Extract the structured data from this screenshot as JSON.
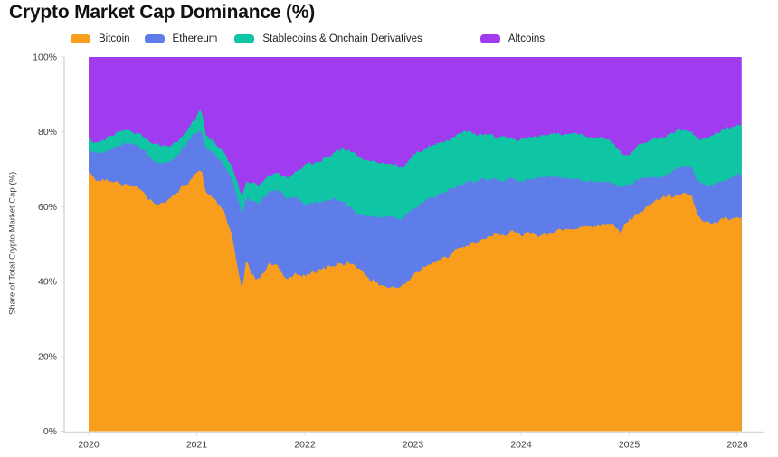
{
  "chart_data": {
    "type": "area",
    "stacked": true,
    "title": "Crypto Market Cap Dominance (%)",
    "ylabel": "Share of Total Crypto Market Cap (%)",
    "xlabel": "",
    "ylim": [
      0,
      100
    ],
    "xlim": [
      2020,
      2026.05
    ],
    "grid": false,
    "legend_position": "top",
    "x_tick_labels": [
      "2020",
      "2021",
      "2022",
      "2023",
      "2024",
      "2025",
      "2026"
    ],
    "x_tick_values": [
      2020,
      2021,
      2022,
      2023,
      2024,
      2025,
      2026
    ],
    "y_tick_labels": [
      "0%",
      "20%",
      "40%",
      "60%",
      "80%",
      "100%"
    ],
    "y_tick_values": [
      0,
      20,
      40,
      60,
      80,
      100
    ],
    "x": [
      2020.0,
      2020.08,
      2020.17,
      2020.25,
      2020.33,
      2020.42,
      2020.5,
      2020.58,
      2020.67,
      2020.75,
      2020.83,
      2020.92,
      2021.0,
      2021.04,
      2021.08,
      2021.17,
      2021.25,
      2021.33,
      2021.38,
      2021.42,
      2021.46,
      2021.5,
      2021.58,
      2021.67,
      2021.75,
      2021.83,
      2021.92,
      2022.0,
      2022.08,
      2022.17,
      2022.25,
      2022.33,
      2022.42,
      2022.5,
      2022.58,
      2022.67,
      2022.75,
      2022.83,
      2022.92,
      2023.0,
      2023.08,
      2023.17,
      2023.25,
      2023.33,
      2023.42,
      2023.5,
      2023.58,
      2023.67,
      2023.75,
      2023.83,
      2023.92,
      2024.0,
      2024.08,
      2024.17,
      2024.25,
      2024.33,
      2024.42,
      2024.5,
      2024.58,
      2024.67,
      2024.75,
      2024.83,
      2024.92,
      2025.0,
      2025.08,
      2025.17,
      2025.25,
      2025.33,
      2025.42,
      2025.5,
      2025.58,
      2025.63,
      2025.67,
      2025.75,
      2025.83,
      2025.92,
      2026.0,
      2026.04
    ],
    "series": [
      {
        "name": "Bitcoin",
        "color": "#F89E1C",
        "values": [
          69,
          66.5,
          67.5,
          66.5,
          66,
          65.5,
          64,
          61.5,
          60.5,
          62,
          64.5,
          66.5,
          69.5,
          70.5,
          64,
          62,
          58.5,
          52,
          43,
          37.8,
          47,
          42,
          40.5,
          45,
          44.5,
          40.5,
          42,
          41.5,
          42.5,
          43.5,
          44,
          44.5,
          45.5,
          43.5,
          41,
          39.5,
          38.5,
          38.5,
          39,
          42,
          43.5,
          45,
          46,
          47,
          48.5,
          49.5,
          50.5,
          51.5,
          52.5,
          52,
          53.5,
          52.5,
          53,
          52.5,
          52.5,
          53.5,
          54,
          54,
          54.5,
          54.5,
          55,
          55.5,
          53.5,
          56.5,
          58,
          60,
          61.5,
          62.5,
          63,
          63.5,
          62.5,
          57.5,
          56.5,
          55.5,
          56.5,
          57,
          57,
          57
        ]
      },
      {
        "name": "Ethereum",
        "color": "#5F7DE8",
        "values": [
          6.5,
          7.5,
          7.5,
          9.5,
          11,
          11,
          11,
          11.5,
          11,
          10,
          9.5,
          11,
          10.5,
          10,
          12,
          12,
          13,
          15,
          19,
          19.7,
          16,
          19.5,
          20.5,
          19,
          20,
          22,
          20.5,
          19,
          18.5,
          18,
          18,
          17,
          14.5,
          14.5,
          16.5,
          17.5,
          19,
          18.5,
          18,
          17.5,
          17.5,
          17.5,
          17.5,
          17.5,
          17,
          17,
          16.5,
          16,
          15,
          15,
          14,
          14,
          14.5,
          15.5,
          15.5,
          14.5,
          13.5,
          13.5,
          12.5,
          12,
          12,
          11,
          11.5,
          9.5,
          9,
          8,
          6,
          6,
          7,
          7.5,
          8,
          9,
          9.5,
          10,
          10,
          10.5,
          11.5,
          11.5
        ]
      },
      {
        "name": "Stablecoins & Onchain Derivatives",
        "color": "#10C5A4",
        "values": [
          2.5,
          3,
          3.5,
          3.5,
          3.5,
          3.5,
          4,
          4,
          4.5,
          4.5,
          4,
          3.5,
          4,
          6,
          3.5,
          3,
          3,
          3.5,
          4,
          5,
          4.5,
          4.5,
          5,
          4.5,
          4.5,
          5,
          7,
          10.5,
          11,
          11,
          12,
          14,
          15,
          15.5,
          15,
          15,
          14,
          14,
          13.5,
          14.5,
          14,
          14,
          13.5,
          13.5,
          14,
          13.5,
          12.5,
          12,
          11.5,
          11.5,
          10.5,
          11,
          11,
          11,
          11,
          11.5,
          12,
          12,
          12,
          12,
          11.5,
          11,
          9.5,
          8,
          9.5,
          9.5,
          10.5,
          10,
          10,
          9.5,
          9.5,
          12,
          12,
          13.5,
          13.5,
          13.5,
          13,
          13.5
        ]
      },
      {
        "name": "Altcoins",
        "color": "#A13BF0",
        "values": [
          22,
          23,
          21.5,
          20.5,
          19.5,
          20,
          21,
          23,
          24,
          23.5,
          22,
          19,
          16,
          13.5,
          20.5,
          23,
          25.5,
          29.5,
          34,
          37.5,
          32.5,
          34,
          34,
          31.5,
          31,
          32.5,
          30.5,
          29,
          28,
          27.5,
          26,
          24.5,
          25,
          26.5,
          27.5,
          28,
          28.5,
          29,
          29.5,
          26,
          25,
          23.5,
          23,
          22,
          20.5,
          20,
          20.5,
          20.5,
          21,
          21.5,
          22,
          22.5,
          21.5,
          21,
          21,
          20.5,
          20.5,
          20.5,
          21,
          21.5,
          21.5,
          22.5,
          25.5,
          26,
          23.5,
          22.5,
          22,
          21.5,
          20,
          19.5,
          20,
          21.5,
          22,
          21,
          20,
          19,
          18.5,
          18
        ]
      }
    ],
    "style": {
      "axis_color": "#d8d8d8",
      "tick_text_color": "#3c3c3c",
      "background": "#ffffff",
      "noise_amplitude_pct": [
        0.8,
        0.7,
        0.7
      ]
    }
  }
}
